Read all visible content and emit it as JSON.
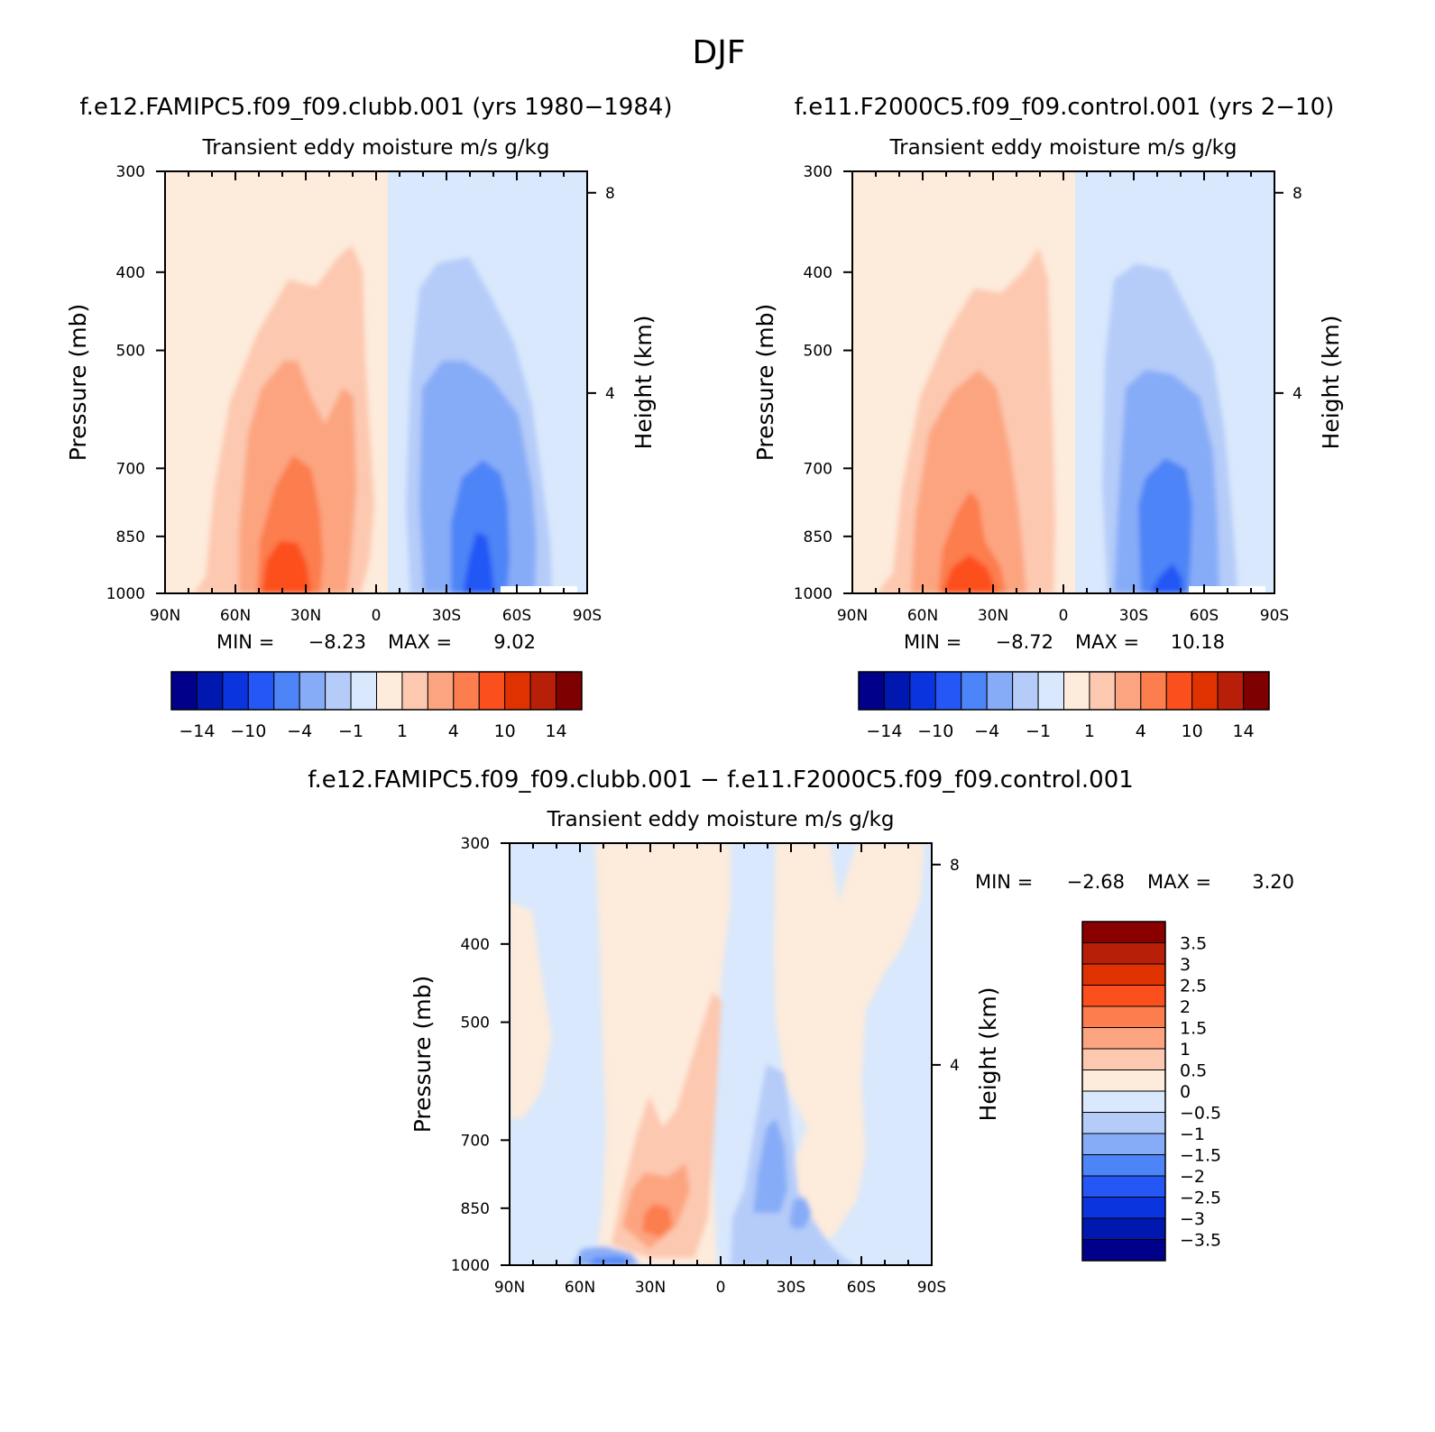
{
  "figure": {
    "season": "DJF",
    "colors": {
      "panel_scale": [
        "#00008a",
        "#0018b0",
        "#0a34dd",
        "#2457f5",
        "#4d84f7",
        "#87acf7",
        "#b5ccf9",
        "#d9e8fc",
        "#fdebdb",
        "#fdc8b0",
        "#fca480",
        "#fc7d4e",
        "#fc4f1e",
        "#e03200",
        "#b81f08",
        "#7f0000"
      ],
      "diff_scale": [
        "#00008a",
        "#0018b0",
        "#0a34dd",
        "#2457f5",
        "#4d84f7",
        "#87acf7",
        "#b5ccf9",
        "#d9e8fc",
        "#fdebdb",
        "#fdc8b0",
        "#fca480",
        "#fc7d4e",
        "#fc4f1e",
        "#e03200",
        "#b81f08",
        "#8a0000"
      ]
    }
  },
  "chart_data": [
    {
      "type": "heatmap",
      "title": "f.e12.FAMIPC5.f09_f09.clubb.001 (yrs 1980−1984)",
      "subtitle": "Transient eddy moisture m/s g/kg",
      "xlabel": "",
      "ylabel": "Pressure (mb)",
      "y2label": "Height (km)",
      "x_ticklabels": [
        "90N",
        "60N",
        "30N",
        "0",
        "30S",
        "60S",
        "90S"
      ],
      "y_ticklabels": [
        "300",
        "400",
        "500",
        "700",
        "850",
        "1000"
      ],
      "y2_ticklabels": [
        "8",
        "4"
      ],
      "ylim": [
        1000,
        300
      ],
      "y_scale": "log",
      "xlim": [
        90,
        -90
      ],
      "min_label": "MIN =",
      "min_value": "−8.23",
      "max_label": "MAX =",
      "max_value": "9.02",
      "colorbar_labels": [
        "−14",
        "−10",
        "−4",
        "−1",
        "1",
        "4",
        "10",
        "14"
      ],
      "field_approx": [
        {
          "lat": 35,
          "p": 900,
          "value": 9.02
        },
        {
          "lat": -47,
          "p": 950,
          "value": -8.23
        }
      ]
    },
    {
      "type": "heatmap",
      "title": "f.e11.F2000C5.f09_f09.control.001 (yrs 2−10)",
      "subtitle": "Transient eddy moisture m/s g/kg",
      "xlabel": "",
      "ylabel": "Pressure (mb)",
      "y2label": "Height (km)",
      "x_ticklabels": [
        "90N",
        "60N",
        "30N",
        "0",
        "30S",
        "60S",
        "90S"
      ],
      "y_ticklabels": [
        "300",
        "400",
        "500",
        "700",
        "850",
        "1000"
      ],
      "y2_ticklabels": [
        "8",
        "4"
      ],
      "ylim": [
        1000,
        300
      ],
      "y_scale": "log",
      "xlim": [
        90,
        -90
      ],
      "min_label": "MIN =",
      "min_value": "−8.72",
      "max_label": "MAX =",
      "max_value": "10.18",
      "colorbar_labels": [
        "−14",
        "−10",
        "−4",
        "−1",
        "1",
        "4",
        "10",
        "14"
      ],
      "field_approx": [
        {
          "lat": 35,
          "p": 950,
          "value": 10.18
        },
        {
          "lat": -45,
          "p": 980,
          "value": -8.72
        }
      ]
    },
    {
      "type": "heatmap",
      "title": "f.e12.FAMIPC5.f09_f09.clubb.001 − f.e11.F2000C5.f09_f09.control.001",
      "subtitle": "Transient eddy moisture m/s g/kg",
      "xlabel": "",
      "ylabel": "Pressure (mb)",
      "y2label": "Height (km)",
      "x_ticklabels": [
        "90N",
        "60N",
        "30N",
        "0",
        "30S",
        "60S",
        "90S"
      ],
      "y_ticklabels": [
        "300",
        "400",
        "500",
        "700",
        "850",
        "1000"
      ],
      "y2_ticklabels": [
        "8",
        "4"
      ],
      "ylim": [
        1000,
        300
      ],
      "y_scale": "log",
      "xlim": [
        90,
        -90
      ],
      "min_label": "MIN =",
      "min_value": "−2.68",
      "max_label": "MAX =",
      "max_value": "3.20",
      "colorbar_labels": [
        "3.5",
        "3",
        "2.5",
        "2",
        "1.5",
        "1",
        "0.5",
        "0",
        "−0.5",
        "−1",
        "−1.5",
        "−2",
        "−2.5",
        "−3",
        "−3.5"
      ],
      "field_approx": [
        {
          "lat": 30,
          "p": 870,
          "value": 3.2
        },
        {
          "lat": 50,
          "p": 1000,
          "value": -2.68
        }
      ]
    }
  ]
}
